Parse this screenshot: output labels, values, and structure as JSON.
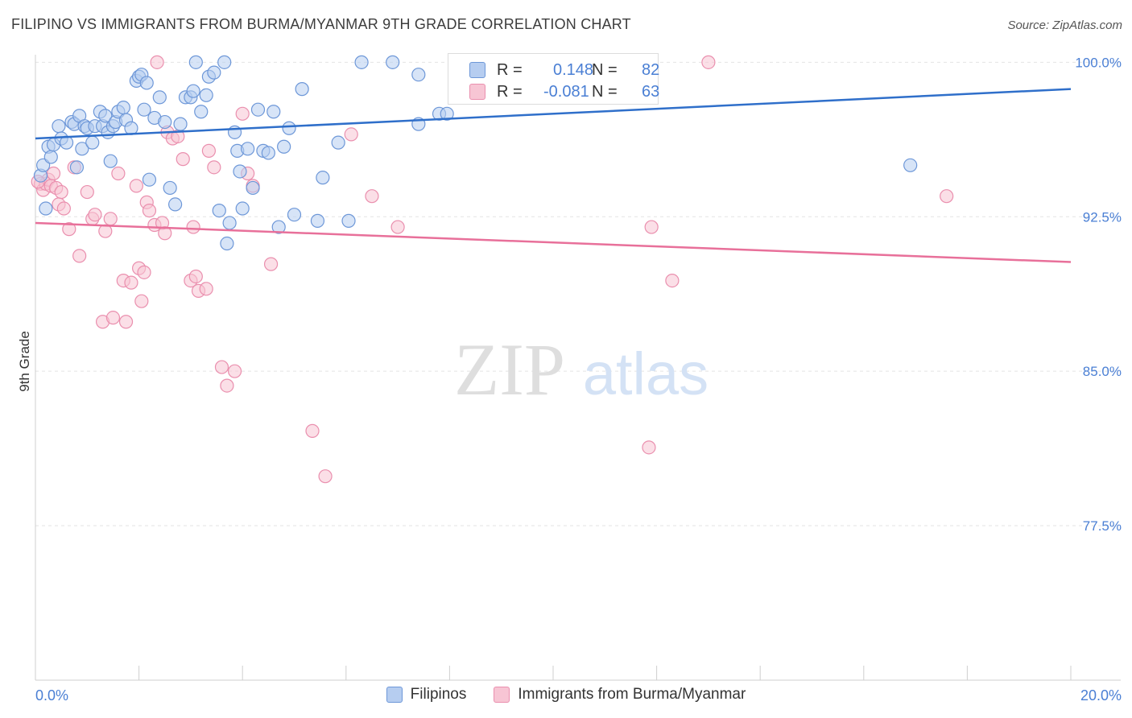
{
  "header": {
    "title": "FILIPINO VS IMMIGRANTS FROM BURMA/MYANMAR 9TH GRADE CORRELATION CHART",
    "source": "Source: ZipAtlas.com"
  },
  "watermark": {
    "zip": "ZIP",
    "atlas": "atlas"
  },
  "stats": {
    "filipinos": {
      "r_label": "R =",
      "r_value": "0.148",
      "n_label": "N =",
      "n_value": "82"
    },
    "burma": {
      "r_label": "R =",
      "r_value": "-0.081",
      "n_label": "N =",
      "n_value": "63"
    }
  },
  "legend": {
    "filipinos": "Filipinos",
    "burma": "Immigrants from Burma/Myanmar"
  },
  "colors": {
    "blue_fill": "#b6cdf0",
    "blue_stroke": "#6d97d8",
    "blue_line": "#2f6fca",
    "pink_fill": "#f7c5d4",
    "pink_stroke": "#ea8fae",
    "pink_line": "#e8709a",
    "tick_label": "#4a7fd4"
  },
  "chart_data": {
    "type": "scatter",
    "title": "FILIPINO VS IMMIGRANTS FROM BURMA/MYANMAR 9TH GRADE CORRELATION CHART",
    "xlabel": "",
    "ylabel": "9th Grade",
    "xlim": [
      0,
      20
    ],
    "ylim": [
      70,
      100.6
    ],
    "x_tick_labels": [
      {
        "value": 0,
        "label": "0.0%"
      },
      {
        "value": 20,
        "label": "20.0%"
      }
    ],
    "y_tick_labels": [
      {
        "value": 100,
        "label": "100.0%"
      },
      {
        "value": 92.5,
        "label": "92.5%"
      },
      {
        "value": 85,
        "label": "85.0%"
      },
      {
        "value": 77.5,
        "label": "77.5%"
      }
    ],
    "grid": true,
    "legend_position": "bottom",
    "series": [
      {
        "name": "Filipinos",
        "trend": {
          "x": [
            0,
            20
          ],
          "y": [
            96.3,
            98.7
          ]
        },
        "points": [
          [
            0.1,
            94.5
          ],
          [
            0.15,
            95.0
          ],
          [
            0.2,
            92.9
          ],
          [
            0.25,
            95.9
          ],
          [
            0.3,
            95.4
          ],
          [
            0.35,
            96.0
          ],
          [
            0.45,
            96.9
          ],
          [
            0.5,
            96.3
          ],
          [
            0.6,
            96.1
          ],
          [
            0.7,
            97.1
          ],
          [
            0.75,
            97.0
          ],
          [
            0.8,
            94.9
          ],
          [
            0.85,
            97.4
          ],
          [
            0.9,
            95.8
          ],
          [
            0.95,
            96.9
          ],
          [
            1.0,
            96.8
          ],
          [
            1.1,
            96.1
          ],
          [
            1.15,
            96.9
          ],
          [
            1.25,
            97.6
          ],
          [
            1.3,
            96.9
          ],
          [
            1.35,
            97.4
          ],
          [
            1.4,
            96.6
          ],
          [
            1.45,
            95.2
          ],
          [
            1.5,
            96.9
          ],
          [
            1.55,
            97.1
          ],
          [
            1.6,
            97.6
          ],
          [
            1.7,
            97.8
          ],
          [
            1.75,
            97.2
          ],
          [
            1.85,
            96.8
          ],
          [
            1.95,
            99.1
          ],
          [
            2.0,
            99.3
          ],
          [
            2.05,
            99.4
          ],
          [
            2.1,
            97.7
          ],
          [
            2.15,
            99.0
          ],
          [
            2.2,
            94.3
          ],
          [
            2.3,
            97.3
          ],
          [
            2.4,
            98.3
          ],
          [
            2.5,
            97.1
          ],
          [
            2.6,
            93.9
          ],
          [
            2.7,
            93.1
          ],
          [
            2.8,
            97.0
          ],
          [
            2.9,
            98.3
          ],
          [
            3.0,
            98.3
          ],
          [
            3.05,
            98.6
          ],
          [
            3.1,
            100.0
          ],
          [
            3.2,
            97.6
          ],
          [
            3.3,
            98.4
          ],
          [
            3.35,
            99.3
          ],
          [
            3.45,
            99.5
          ],
          [
            3.55,
            92.8
          ],
          [
            3.65,
            100.0
          ],
          [
            3.7,
            91.2
          ],
          [
            3.75,
            92.2
          ],
          [
            3.85,
            96.6
          ],
          [
            3.9,
            95.7
          ],
          [
            3.95,
            94.7
          ],
          [
            4.0,
            92.9
          ],
          [
            4.1,
            95.8
          ],
          [
            4.2,
            93.9
          ],
          [
            4.3,
            97.7
          ],
          [
            4.4,
            95.7
          ],
          [
            4.5,
            95.6
          ],
          [
            4.6,
            97.6
          ],
          [
            4.7,
            92.0
          ],
          [
            4.8,
            95.9
          ],
          [
            4.9,
            96.8
          ],
          [
            5.0,
            92.6
          ],
          [
            5.15,
            98.7
          ],
          [
            5.45,
            92.3
          ],
          [
            5.55,
            94.4
          ],
          [
            5.85,
            96.1
          ],
          [
            6.05,
            92.3
          ],
          [
            6.3,
            100.0
          ],
          [
            6.9,
            100.0
          ],
          [
            7.4,
            99.4
          ],
          [
            7.4,
            97.0
          ],
          [
            7.8,
            97.5
          ],
          [
            7.95,
            97.5
          ],
          [
            8.3,
            100.0
          ],
          [
            8.35,
            100.0
          ],
          [
            11.9,
            100.0
          ],
          [
            16.9,
            95.0
          ]
        ]
      },
      {
        "name": "Immigrants from Burma/Myanmar",
        "trend": {
          "x": [
            0,
            20
          ],
          "y": [
            92.2,
            90.3
          ]
        },
        "points": [
          [
            0.1,
            94.1
          ],
          [
            0.15,
            93.8
          ],
          [
            0.2,
            94.1
          ],
          [
            0.25,
            94.3
          ],
          [
            0.3,
            94.0
          ],
          [
            0.35,
            94.6
          ],
          [
            0.4,
            93.9
          ],
          [
            0.45,
            93.1
          ],
          [
            0.5,
            93.7
          ],
          [
            0.55,
            92.9
          ],
          [
            0.65,
            91.9
          ],
          [
            0.75,
            94.9
          ],
          [
            0.85,
            90.6
          ],
          [
            1.0,
            93.7
          ],
          [
            1.1,
            92.4
          ],
          [
            1.15,
            92.6
          ],
          [
            1.3,
            87.4
          ],
          [
            1.35,
            91.8
          ],
          [
            1.45,
            92.4
          ],
          [
            1.5,
            87.6
          ],
          [
            1.6,
            94.6
          ],
          [
            1.7,
            89.4
          ],
          [
            1.75,
            87.4
          ],
          [
            1.85,
            89.3
          ],
          [
            1.95,
            94.0
          ],
          [
            2.0,
            90.0
          ],
          [
            2.05,
            88.4
          ],
          [
            2.1,
            89.8
          ],
          [
            2.15,
            93.2
          ],
          [
            2.2,
            92.8
          ],
          [
            2.3,
            92.1
          ],
          [
            2.35,
            100.0
          ],
          [
            2.45,
            92.2
          ],
          [
            2.5,
            91.7
          ],
          [
            2.55,
            96.6
          ],
          [
            2.65,
            96.3
          ],
          [
            2.75,
            96.4
          ],
          [
            2.85,
            95.3
          ],
          [
            3.0,
            89.4
          ],
          [
            3.05,
            92.0
          ],
          [
            3.1,
            89.6
          ],
          [
            3.15,
            88.9
          ],
          [
            3.3,
            89.0
          ],
          [
            3.35,
            95.7
          ],
          [
            3.45,
            94.9
          ],
          [
            3.6,
            85.2
          ],
          [
            3.7,
            84.3
          ],
          [
            3.85,
            85.0
          ],
          [
            4.0,
            97.5
          ],
          [
            4.1,
            94.6
          ],
          [
            4.2,
            94.0
          ],
          [
            4.55,
            90.2
          ],
          [
            5.35,
            82.1
          ],
          [
            5.6,
            79.9
          ],
          [
            6.1,
            96.5
          ],
          [
            6.5,
            93.5
          ],
          [
            7.0,
            92.0
          ],
          [
            11.9,
            92.0
          ],
          [
            11.85,
            81.3
          ],
          [
            12.3,
            89.4
          ],
          [
            13.0,
            100.0
          ],
          [
            17.6,
            93.5
          ],
          [
            0.05,
            94.2
          ]
        ]
      }
    ]
  }
}
